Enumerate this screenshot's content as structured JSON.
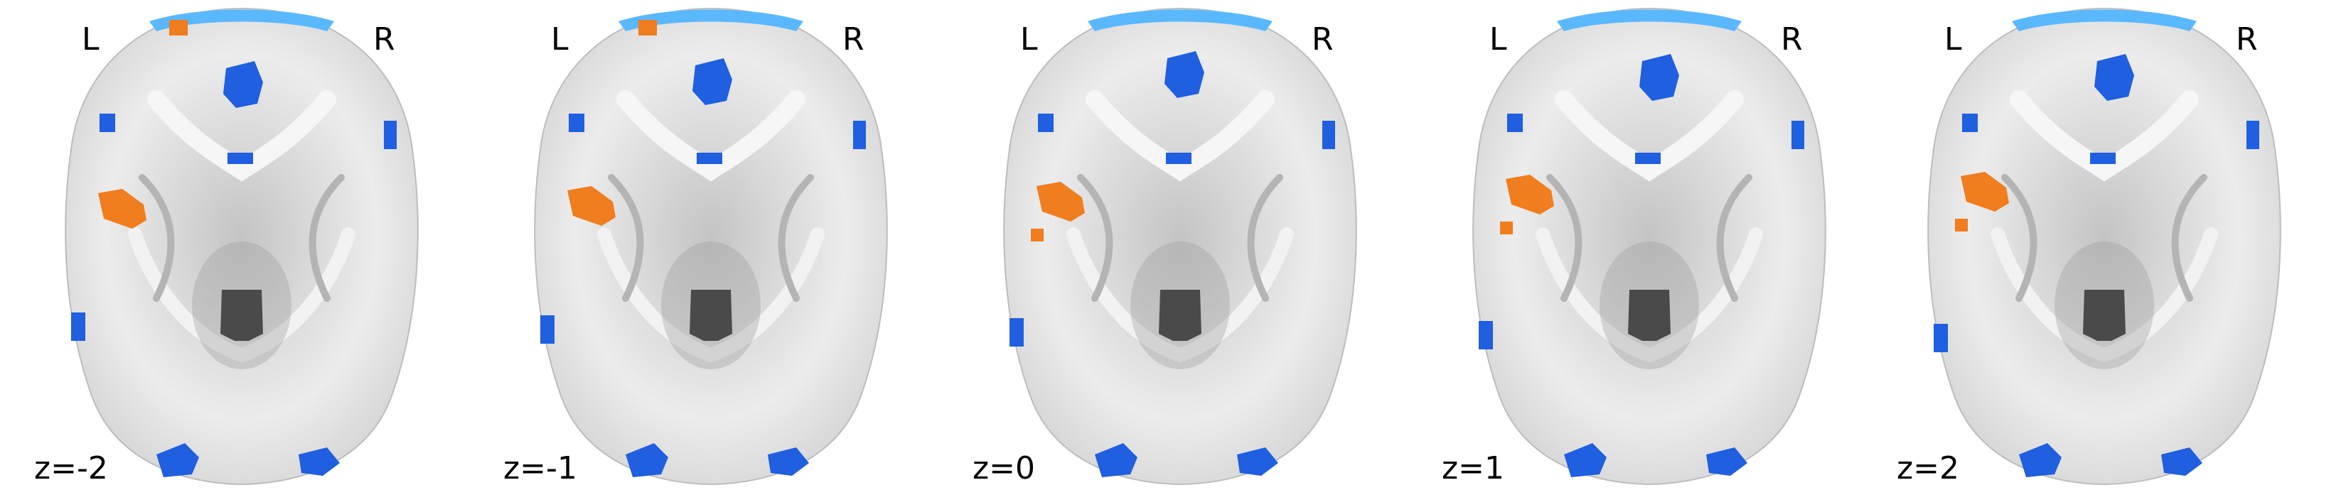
{
  "figure": {
    "panels": [
      {
        "left_label": "L",
        "right_label": "R",
        "slice_label": "z=-2",
        "slice_z": -2
      },
      {
        "left_label": "L",
        "right_label": "R",
        "slice_label": "z=-1",
        "slice_z": -1
      },
      {
        "left_label": "L",
        "right_label": "R",
        "slice_label": "z=0",
        "slice_z": 0
      },
      {
        "left_label": "L",
        "right_label": "R",
        "slice_label": "z=1",
        "slice_z": 1
      },
      {
        "left_label": "L",
        "right_label": "R",
        "slice_label": "z=2",
        "slice_z": 2
      }
    ],
    "colors": {
      "background": "#ffffff",
      "brain_light": "#ececec",
      "brain_mid": "#c4c4c4",
      "brain_dark": "#9a9a9a",
      "ventricle": "#4a4a4a",
      "positive_activation": "#f07d1e",
      "negative_activation": "#1f5fe0",
      "negative_activation_light": "#5ab8ff"
    }
  }
}
